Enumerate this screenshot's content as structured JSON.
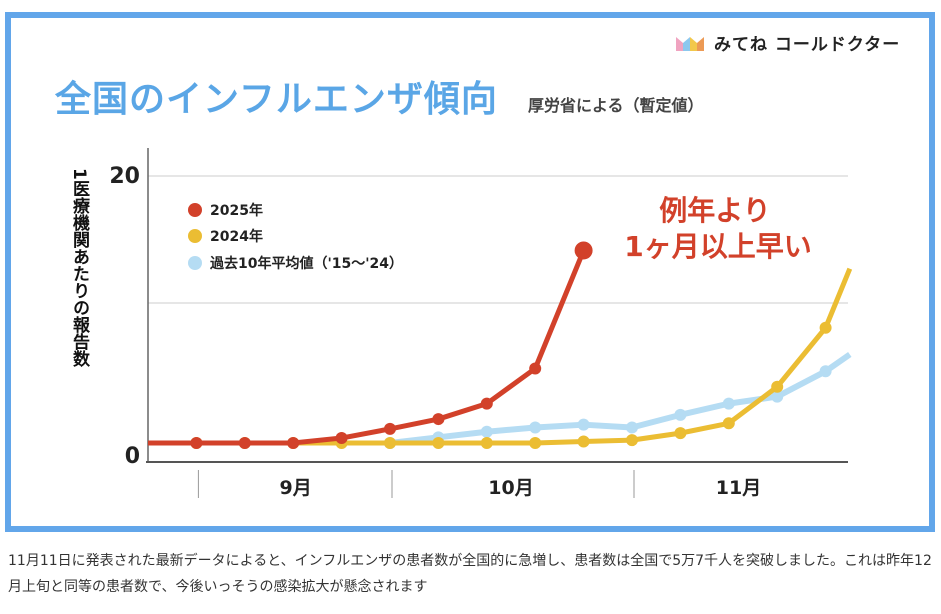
{
  "brand": "みてね コールドクター",
  "title": "全国のインフルエンザ傾向",
  "subtitle": "厚労省による（暫定値）",
  "annotation": [
    "例年より",
    "1ヶ月以上早い"
  ],
  "caption": "11月11日に発表された最新データによると、インフルエンザの患者数が全国的に急増し、患者数は全国で5万7千人を突破しました。これは昨年12月上旬と同等の患者数で、今後いっそうの感染拡大が懸念されます",
  "chart_data": {
    "type": "line",
    "ylabel": "1医療機関あたりの報告数",
    "ylim": [
      0,
      20
    ],
    "yticks": [
      "0",
      "20"
    ],
    "months": [
      {
        "label": "9月",
        "x": 3.05
      },
      {
        "label": "10月",
        "x": 7.5
      },
      {
        "label": "11月",
        "x": 12.2
      }
    ],
    "month_separators": [
      1,
      5,
      10
    ],
    "series": [
      {
        "name": "2025年",
        "color": "#d2412a",
        "x": [
          0,
          1,
          2,
          3,
          4,
          5,
          6,
          7,
          8,
          9
        ],
        "values": [
          1.0,
          1.0,
          1.0,
          1.0,
          1.35,
          2.0,
          2.7,
          3.8,
          6.3,
          14.7
        ]
      },
      {
        "name": "2024年",
        "color": "#ebbd33",
        "x": [
          0,
          1,
          2,
          3,
          4,
          5,
          6,
          7,
          8,
          9,
          10,
          11,
          12,
          13,
          14,
          14.5
        ],
        "values": [
          1.0,
          1.0,
          1.0,
          1.0,
          1.0,
          1.0,
          1.0,
          1.0,
          1.0,
          1.1,
          1.2,
          1.7,
          2.4,
          5.0,
          9.2,
          13.4
        ]
      },
      {
        "name": "過去10年平均値（'15〜'24）",
        "color": "#b5dcf3",
        "x": [
          5,
          6,
          7,
          8,
          9,
          10,
          11,
          12,
          13,
          14,
          14.5
        ],
        "values": [
          1.0,
          1.4,
          1.8,
          2.1,
          2.3,
          2.1,
          3.0,
          3.8,
          4.3,
          6.1,
          7.3
        ]
      }
    ]
  }
}
